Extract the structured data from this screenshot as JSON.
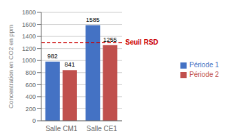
{
  "chart_data": {
    "type": "bar",
    "categories": [
      "Salle CM1",
      "Salle CE1"
    ],
    "series": [
      {
        "name": "Période 1",
        "color": "#4472C4",
        "values": [
          982,
          1585
        ]
      },
      {
        "name": "Période 2",
        "color": "#C0504D",
        "values": [
          841,
          1255
        ]
      }
    ],
    "ylabel": "Concentration en CO2 en ppm",
    "ylim": [
      0,
      1800
    ],
    "yticks": [
      0,
      200,
      400,
      600,
      800,
      1000,
      1200,
      1400,
      1600,
      1800
    ],
    "grid": true,
    "legend": "right",
    "data_labels": true,
    "reference_line": {
      "value": 1300,
      "label": "Seuil RSD",
      "color": "#CC0000"
    }
  }
}
